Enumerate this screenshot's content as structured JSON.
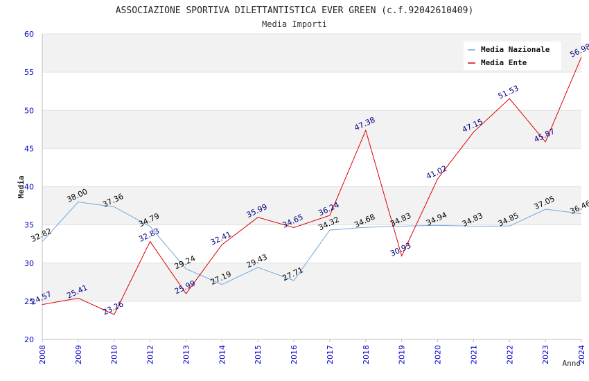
{
  "chart_data": {
    "type": "line",
    "title": "ASSOCIAZIONE SPORTIVA DILETTANTISTICA EVER GREEN (c.f.92042610409)",
    "subtitle": "Media Importi",
    "xlabel": "Anno",
    "ylabel": "Media",
    "ylim": [
      20,
      60
    ],
    "yticks": [
      "20",
      "25",
      "30",
      "35",
      "40",
      "45",
      "50",
      "55",
      "60"
    ],
    "categories": [
      "2008",
      "2009",
      "2010",
      "2012",
      "2013",
      "2014",
      "2015",
      "2016",
      "2017",
      "2018",
      "2019",
      "2020",
      "2021",
      "2022",
      "2023",
      "2024"
    ],
    "legend_position": "top-right",
    "grid": "horizontal bands",
    "series": [
      {
        "name": "Media Nazionale",
        "color": "#6fa8dc",
        "label_color": "#000000",
        "values": [
          32.82,
          38.0,
          37.36,
          34.79,
          29.24,
          27.19,
          29.43,
          27.71,
          34.32,
          34.68,
          34.83,
          34.94,
          34.83,
          34.85,
          37.05,
          36.46
        ],
        "labels": [
          "32.82",
          "38.00",
          "37.36",
          "34.79",
          "29.24",
          "27.19",
          "29.43",
          "27.71",
          "34.32",
          "34.68",
          "34.83",
          "34.94",
          "34.83",
          "34.85",
          "37.05",
          "36.46"
        ]
      },
      {
        "name": "Media Ente",
        "color": "#dd0000",
        "label_color": "#000080",
        "values": [
          24.57,
          25.41,
          23.26,
          32.83,
          25.99,
          32.41,
          35.99,
          34.65,
          36.24,
          47.38,
          30.93,
          41.02,
          47.15,
          51.53,
          45.87,
          56.98
        ],
        "labels": [
          "24.57",
          "25.41",
          "23.26",
          "32.83",
          "25.99",
          "32.41",
          "35.99",
          "34.65",
          "36.24",
          "47.38",
          "30.93",
          "41.02",
          "47.15",
          "51.53",
          "45.87",
          "56.98"
        ]
      }
    ]
  }
}
